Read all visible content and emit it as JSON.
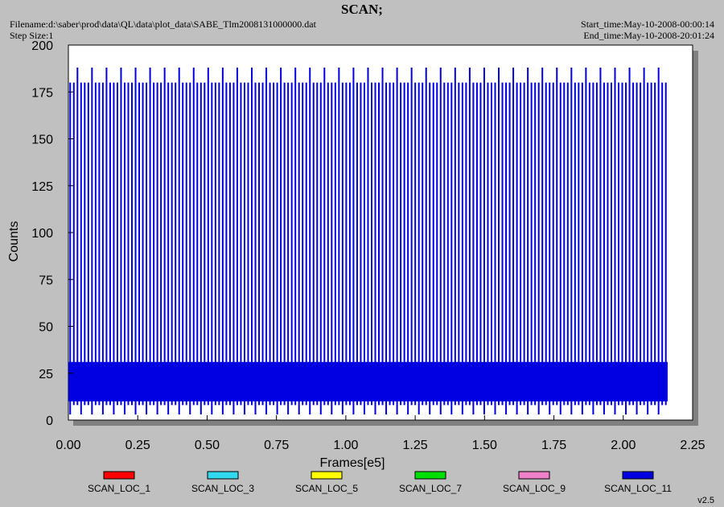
{
  "header": {
    "title": "SCAN;",
    "filename": "Filename:d:\\saber\\prod\\data\\QL\\data\\plot_data\\SABE_Tlm2008131000000.dat",
    "step_size": "Step Size:1",
    "start_time": "Start_time:May-10-2008-00:00:14",
    "end_time": "End_time:May-10-2008-20:01:24"
  },
  "version": "v2.5",
  "chart_data": {
    "type": "line",
    "title": "SCAN;",
    "xlabel": "Frames[e5]",
    "ylabel": "Counts",
    "xlim": [
      0,
      2.25
    ],
    "ylim": [
      0,
      200
    ],
    "x_ticks": [
      "0.00",
      "0.25",
      "0.50",
      "0.75",
      "1.00",
      "1.25",
      "1.50",
      "1.75",
      "2.00",
      "2.25"
    ],
    "y_ticks": [
      "0",
      "25",
      "50",
      "75",
      "100",
      "125",
      "150",
      "175",
      "200"
    ],
    "legend_position": "bottom",
    "series": [
      {
        "name": "SCAN_LOC_1",
        "color": "#ff0000",
        "values": []
      },
      {
        "name": "SCAN_LOC_3",
        "color": "#30d8f0",
        "values": []
      },
      {
        "name": "SCAN_LOC_5",
        "color": "#ffff00",
        "values": []
      },
      {
        "name": "SCAN_LOC_7",
        "color": "#00e000",
        "values": []
      },
      {
        "name": "SCAN_LOC_9",
        "color": "#f080c8",
        "values": []
      },
      {
        "name": "SCAN_LOC_11",
        "color": "#0000e0",
        "pattern": {
          "x_start": 0.0,
          "x_end": 2.16,
          "baseline_min": 10,
          "baseline_max": 31,
          "spike_values": [
            180,
            188
          ],
          "dip_values": [
            3,
            8
          ]
        }
      }
    ]
  }
}
